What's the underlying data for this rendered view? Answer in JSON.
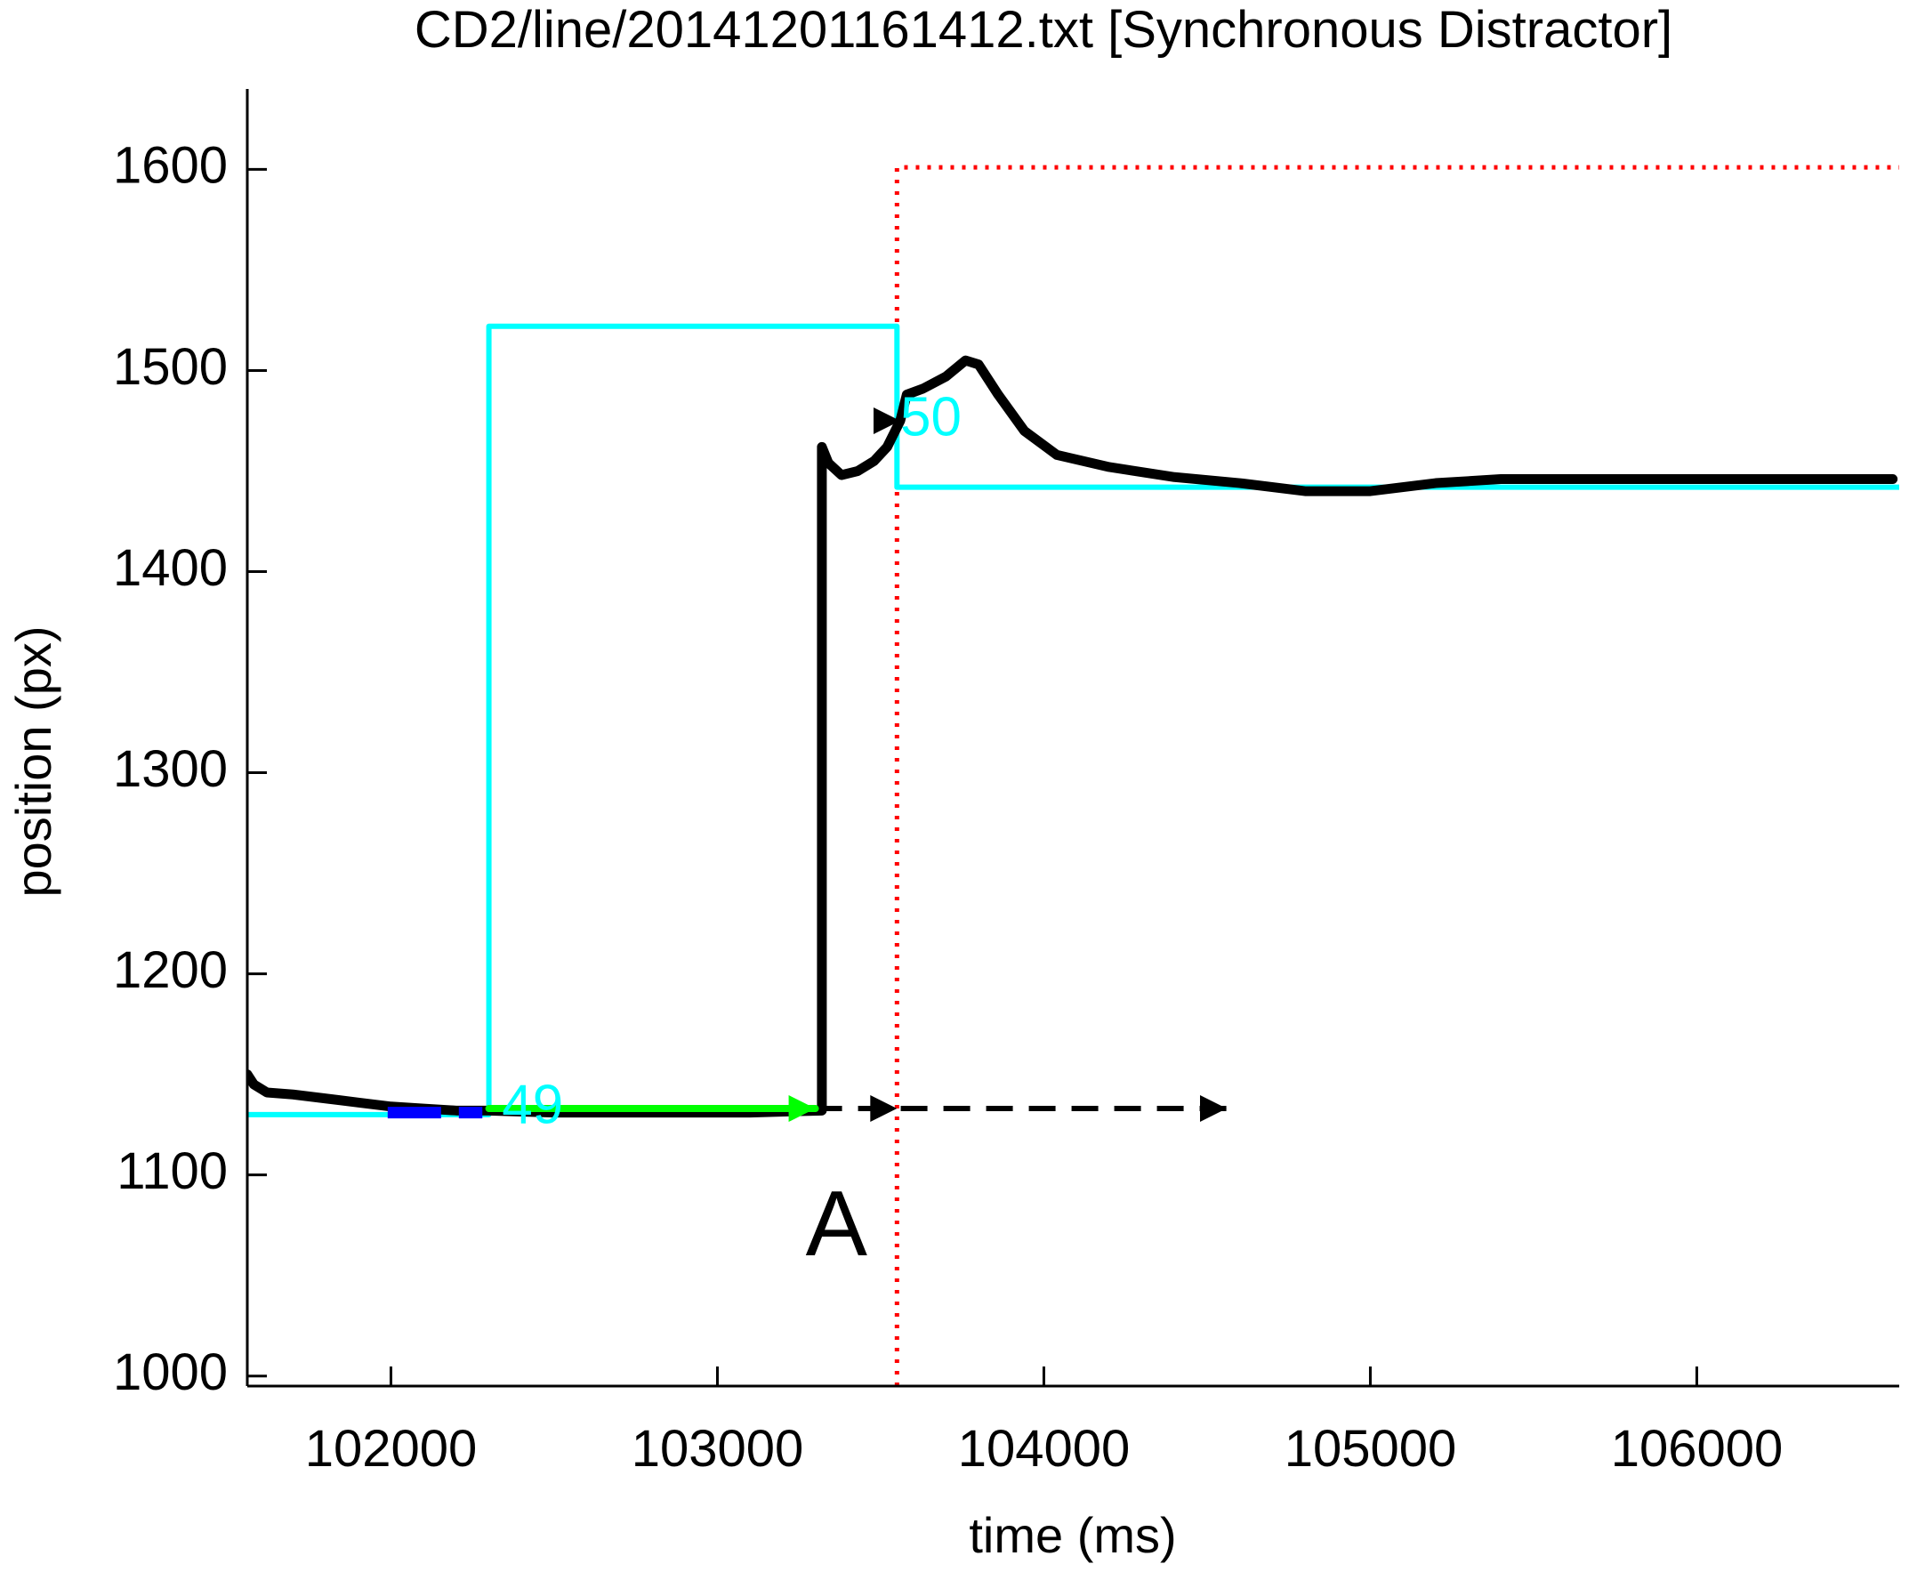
{
  "chart_data": {
    "type": "line",
    "title": "CD2/line/20141201161412.txt [Synchronous Distractor]",
    "xlabel": "time (ms)",
    "ylabel": "position (px)",
    "xlim": [
      101560,
      106620
    ],
    "ylim": [
      995,
      1640
    ],
    "x_ticks": [
      102000,
      103000,
      104000,
      105000,
      106000
    ],
    "y_ticks": [
      1000,
      1100,
      1200,
      1300,
      1400,
      1500,
      1600
    ],
    "x_tick_labels": [
      "102000",
      "103000",
      "104000",
      "105000",
      "106000"
    ],
    "y_tick_labels": [
      "1000",
      "1100",
      "1200",
      "1300",
      "1400",
      "1500",
      "1600"
    ],
    "grid": false,
    "colors": {
      "trace": "#000000",
      "target": "#00ffff",
      "reference": "#ff0000",
      "green_segment": "#00ff00",
      "blue_segment": "#0000ff",
      "dashed_projection": "#000000"
    },
    "series": [
      {
        "role": "cyan_target_line",
        "x": [
          101560,
          102300,
          102300,
          103550,
          103550,
          106620
        ],
        "y": [
          1130,
          1130,
          1522,
          1522,
          1442,
          1442
        ]
      },
      {
        "role": "red_dotted_reference",
        "x": [
          103550,
          103550,
          106620
        ],
        "y": [
          995,
          1601,
          1601
        ]
      },
      {
        "role": "black_position_trace",
        "x": [
          101560,
          101580,
          101620,
          101700,
          101800,
          101900,
          102000,
          102100,
          102200,
          102300,
          102500,
          102800,
          103100,
          103320,
          103320,
          103340,
          103380,
          103430,
          103480,
          103520,
          103560,
          103580,
          103630,
          103700,
          103760,
          103800,
          103860,
          103940,
          104040,
          104200,
          104400,
          104600,
          104800,
          105000,
          105200,
          105400,
          105800,
          106200,
          106600
        ],
        "y": [
          1150,
          1145,
          1141,
          1140,
          1138,
          1136,
          1134,
          1133,
          1132,
          1132,
          1131,
          1131,
          1131,
          1132,
          1462,
          1454,
          1448,
          1450,
          1455,
          1462,
          1475,
          1488,
          1491,
          1497,
          1505,
          1503,
          1488,
          1470,
          1458,
          1452,
          1447,
          1444,
          1440,
          1440,
          1444,
          1446,
          1446,
          1446,
          1446
        ]
      },
      {
        "role": "green_segment",
        "x": [
          102300,
          103300
        ],
        "y": [
          1133,
          1133
        ]
      },
      {
        "role": "blue_segment",
        "x": [
          101990,
          102280
        ],
        "y": [
          1131,
          1131
        ]
      },
      {
        "role": "black_dashed_projection",
        "x": [
          103300,
          104560
        ],
        "y": [
          1133,
          1133
        ]
      }
    ],
    "arrowheads": [
      {
        "color": "#00ff00",
        "x": 103300,
        "y": 1133
      },
      {
        "color": "#000000",
        "x": 103550,
        "y": 1133
      },
      {
        "color": "#000000",
        "x": 104560,
        "y": 1133
      },
      {
        "color": "#000000",
        "x": 103560,
        "y": 1475
      }
    ],
    "annotations": [
      {
        "text": "49",
        "x": 102340,
        "y": 1133,
        "color": "#00ffff",
        "role": "cyan-label"
      },
      {
        "text": "50",
        "x": 103560,
        "y": 1475,
        "color": "#00ffff",
        "role": "cyan-label"
      },
      {
        "text": "A",
        "x": 103270,
        "y": 1060,
        "color": "#000000",
        "role": "marker-label"
      }
    ]
  }
}
